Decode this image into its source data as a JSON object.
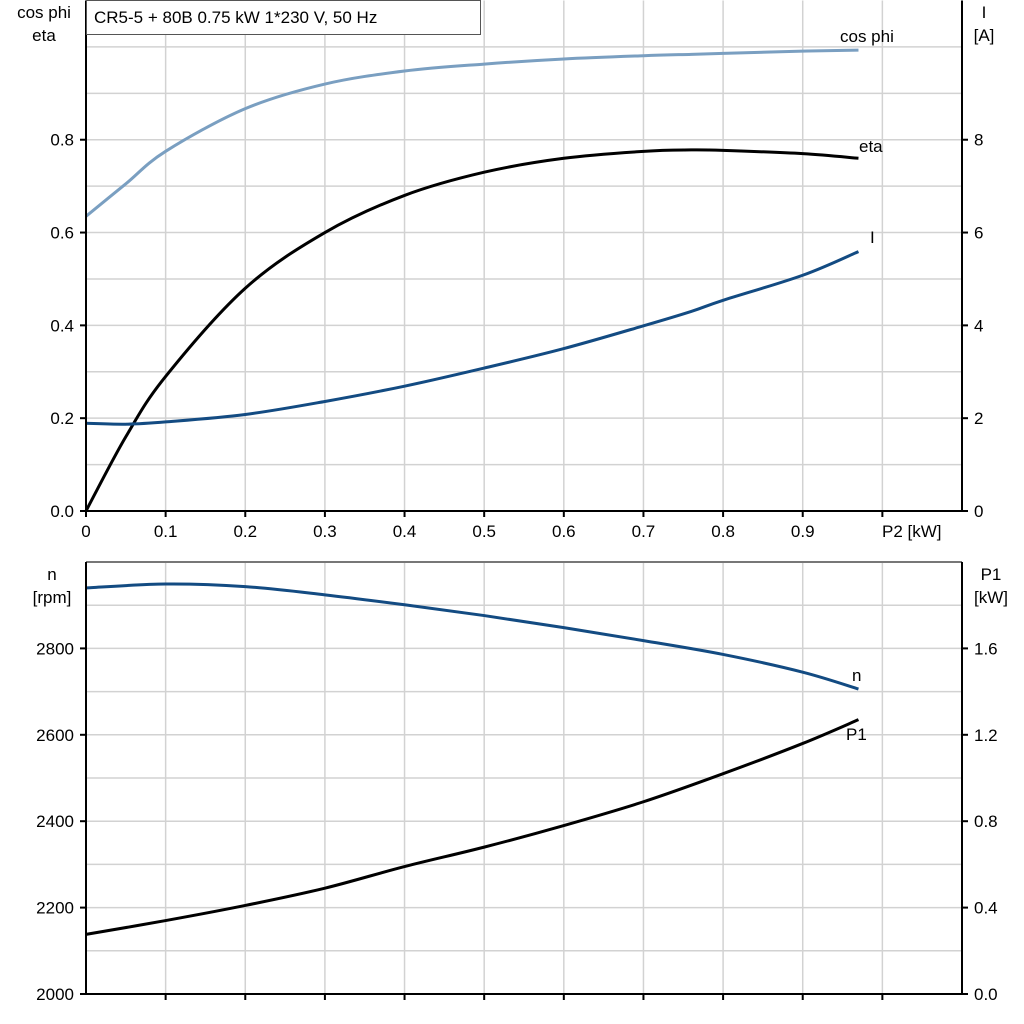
{
  "title": "CR5-5 + 80B   0.75 kW   1*230 V, 50 Hz",
  "colors": {
    "cos_phi": "#7a9fc1",
    "I": "#134b82",
    "n": "#134b82",
    "eta": "#000000",
    "P1": "#000000",
    "grid": "#d2d2d2"
  },
  "chart_data": [
    {
      "type": "line",
      "xlabel": "P2 [kW]",
      "xlim": [
        0,
        1.1
      ],
      "xticks": [
        "0",
        "0.1",
        "0.2",
        "0.3",
        "0.4",
        "0.5",
        "0.6",
        "0.7",
        "0.8",
        "0.9"
      ],
      "ylabel_left": [
        "cos phi",
        "eta"
      ],
      "ylim_left": [
        0,
        1.1
      ],
      "yticks_left": [
        "0.0",
        "0.2",
        "0.4",
        "0.6",
        "0.8"
      ],
      "ylabel_right": [
        "I",
        "[A]"
      ],
      "ylim_right": [
        0,
        11
      ],
      "yticks_right": [
        "0",
        "2",
        "4",
        "6",
        "8"
      ],
      "grid": true,
      "x": [
        0,
        0.05,
        0.1,
        0.2,
        0.3,
        0.4,
        0.5,
        0.6,
        0.7,
        0.76,
        0.8,
        0.9,
        0.97
      ],
      "series": [
        {
          "name": "cos phi",
          "axis": "left",
          "values": [
            0.635,
            0.705,
            0.775,
            0.867,
            0.92,
            0.948,
            0.963,
            0.974,
            0.981,
            0.984,
            0.986,
            0.991,
            0.993
          ]
        },
        {
          "name": "eta",
          "axis": "left",
          "values": [
            0,
            0.16,
            0.29,
            0.48,
            0.6,
            0.68,
            0.73,
            0.76,
            0.775,
            0.778,
            0.777,
            0.77,
            0.76
          ]
        },
        {
          "name": "I",
          "axis": "right",
          "values": [
            1.89,
            1.87,
            1.92,
            2.08,
            2.36,
            2.69,
            3.08,
            3.5,
            3.99,
            4.3,
            4.54,
            5.08,
            5.59
          ]
        }
      ]
    },
    {
      "type": "line",
      "xlim": [
        0,
        1.1
      ],
      "ylabel_left": [
        "n",
        "[rpm]"
      ],
      "ylim_left": [
        2000,
        3000
      ],
      "yticks_left": [
        "2000",
        "2200",
        "2400",
        "2600",
        "2800"
      ],
      "ylabel_right": [
        "P1",
        "[kW]"
      ],
      "ylim_right": [
        0,
        2.0
      ],
      "yticks_right": [
        "0.0",
        "0.4",
        "0.8",
        "1.2",
        "1.6"
      ],
      "grid": true,
      "x": [
        0,
        0.1,
        0.2,
        0.3,
        0.4,
        0.5,
        0.6,
        0.7,
        0.8,
        0.9,
        0.97
      ],
      "series": [
        {
          "name": "n",
          "axis": "left",
          "values": [
            2940,
            2949,
            2943,
            2924,
            2901,
            2876,
            2848,
            2818,
            2786,
            2745,
            2706
          ]
        },
        {
          "name": "P1",
          "axis": "right",
          "values": [
            0.276,
            0.34,
            0.41,
            0.49,
            0.59,
            0.68,
            0.78,
            0.89,
            1.02,
            1.16,
            1.27
          ]
        }
      ]
    }
  ]
}
